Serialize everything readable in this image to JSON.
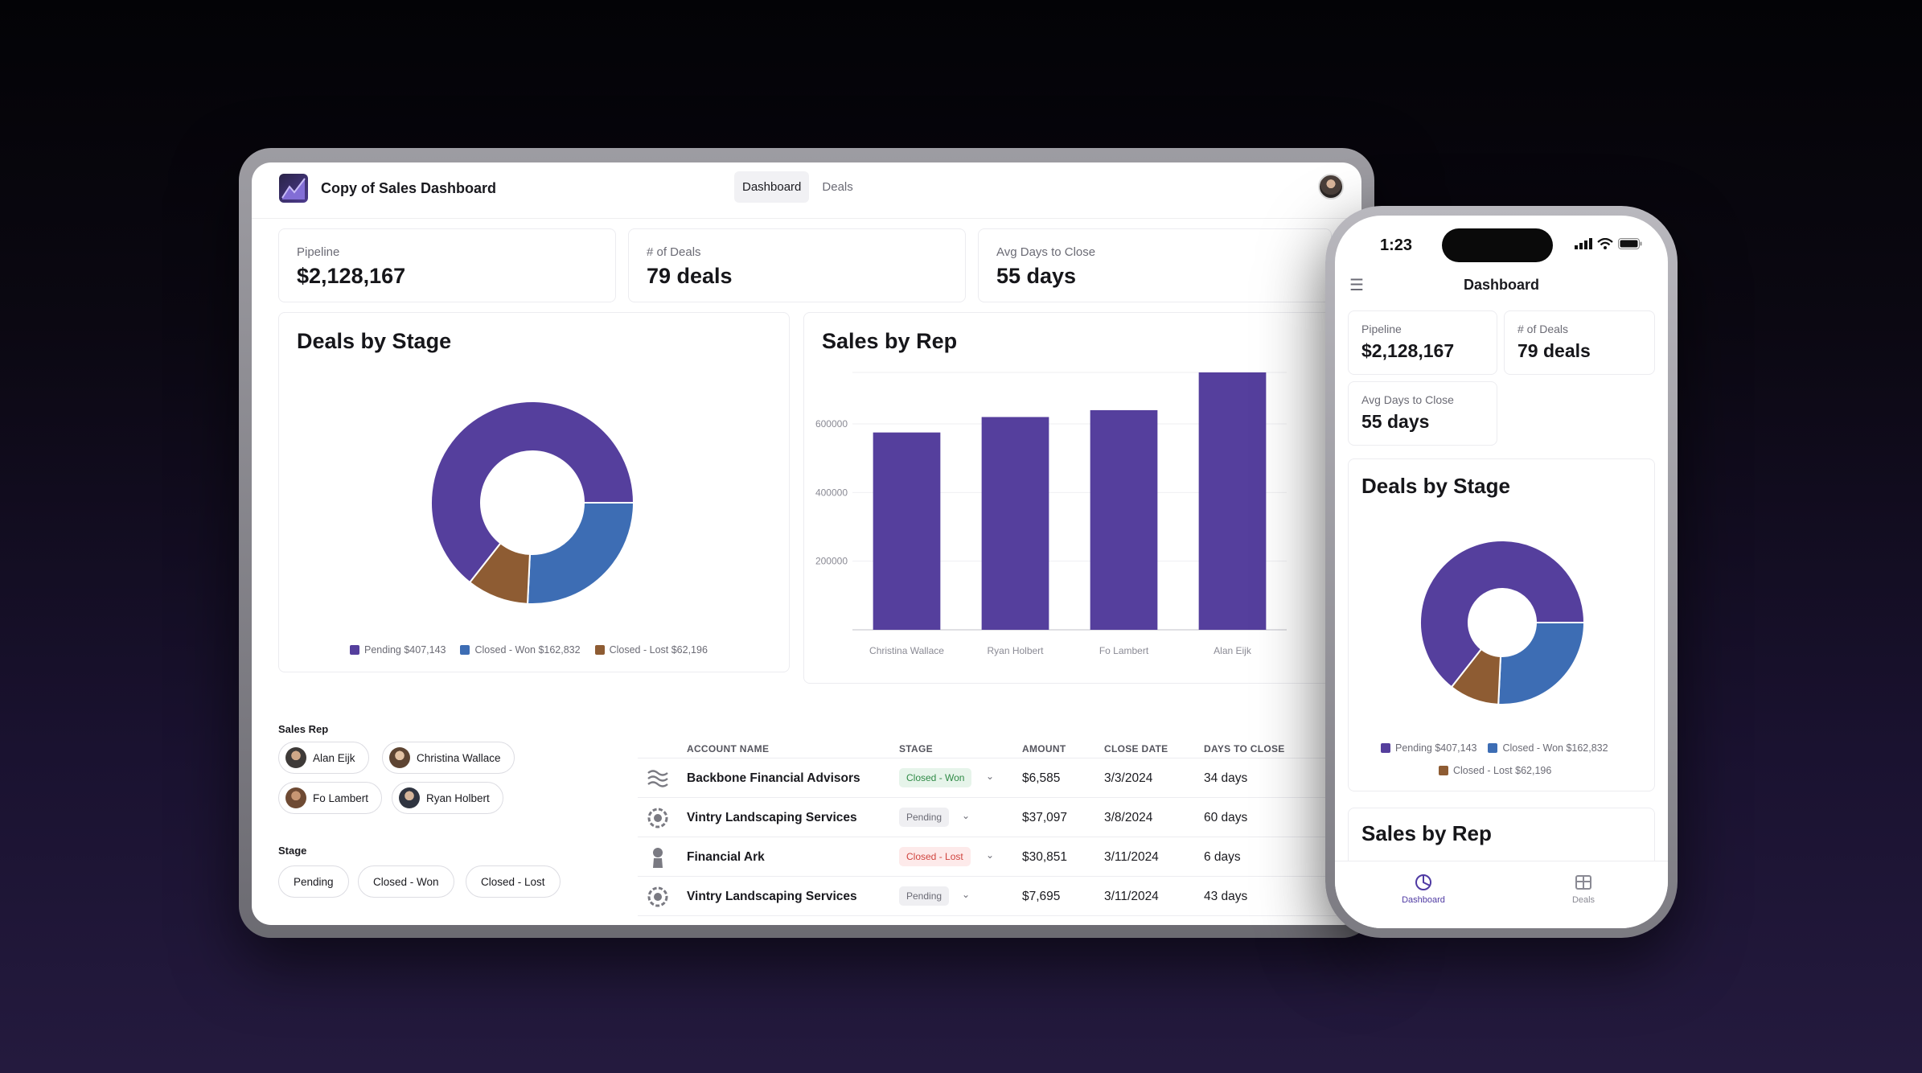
{
  "app": {
    "title": "Copy of Sales Dashboard"
  },
  "nav": {
    "tabs": [
      {
        "label": "Dashboard",
        "active": true
      },
      {
        "label": "Deals",
        "active": false
      }
    ]
  },
  "stats": [
    {
      "label": "Pipeline",
      "value": "$2,128,167"
    },
    {
      "label": "# of Deals",
      "value": "79 deals"
    },
    {
      "label": "Avg Days to Close",
      "value": "55 days"
    }
  ],
  "deals_by_stage": {
    "title": "Deals by Stage",
    "legend": [
      {
        "label": "Pending $407,143",
        "color": "#553f9d"
      },
      {
        "label": "Closed - Won $162,832",
        "color": "#3d6db4"
      },
      {
        "label": "Closed - Lost $62,196",
        "color": "#8e5c33"
      }
    ]
  },
  "sales_by_rep": {
    "title": "Sales by Rep"
  },
  "chart_data": [
    {
      "type": "pie",
      "title": "Deals by Stage",
      "categories": [
        "Pending",
        "Closed - Won",
        "Closed - Lost"
      ],
      "values": [
        407143,
        162832,
        62196
      ],
      "colors": [
        "#553f9d",
        "#3d6db4",
        "#8e5c33"
      ],
      "donut": true,
      "legend": "bottom"
    },
    {
      "type": "bar",
      "title": "Sales by Rep",
      "categories": [
        "Christina Wallace",
        "Ryan Holbert",
        "Fo Lambert",
        "Alan Eijk"
      ],
      "values": [
        575000,
        620000,
        640000,
        750000
      ],
      "ylim": [
        0,
        750000
      ],
      "yticks": [
        "200000",
        "400000",
        "600000"
      ],
      "grid": true,
      "color": "#553f9d"
    }
  ],
  "filters": {
    "sales_rep_label": "Sales Rep",
    "reps": [
      "Alan Eijk",
      "Christina Wallace",
      "Fo Lambert",
      "Ryan Holbert"
    ],
    "stage_label": "Stage",
    "stages": [
      "Pending",
      "Closed - Won",
      "Closed - Lost"
    ]
  },
  "table": {
    "columns": [
      "ACCOUNT NAME",
      "STAGE",
      "AMOUNT",
      "CLOSE DATE",
      "DAYS TO CLOSE"
    ],
    "rows": [
      {
        "account": "Backbone Financial Advisors",
        "stage": "Closed - Won",
        "amount": "$6,585",
        "close_date": "3/3/2024",
        "days": "34 days",
        "icon": "waves-icon"
      },
      {
        "account": "Vintry Landscaping Services",
        "stage": "Pending",
        "amount": "$37,097",
        "close_date": "3/8/2024",
        "days": "60 days",
        "icon": "gear-flower-icon"
      },
      {
        "account": "Financial Ark",
        "stage": "Closed - Lost",
        "amount": "$30,851",
        "close_date": "3/11/2024",
        "days": "6 days",
        "icon": "person-bust-icon"
      },
      {
        "account": "Vintry Landscaping Services",
        "stage": "Pending",
        "amount": "$7,695",
        "close_date": "3/11/2024",
        "days": "43 days",
        "icon": "gear-flower-icon"
      }
    ]
  },
  "phone": {
    "time": "1:23",
    "title": "Dashboard",
    "tabs": [
      {
        "label": "Dashboard",
        "active": true
      },
      {
        "label": "Deals",
        "active": false
      }
    ]
  }
}
